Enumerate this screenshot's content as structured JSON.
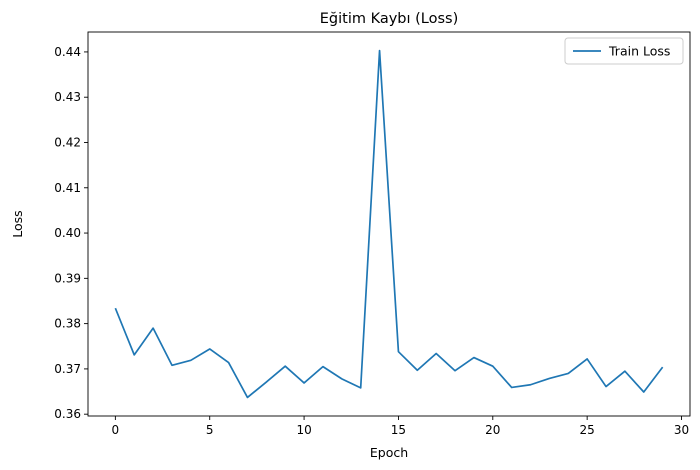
{
  "chart_data": {
    "type": "line",
    "title": "Eğitim Kaybı (Loss)",
    "xlabel": "Epoch",
    "ylabel": "Loss",
    "xlim": [
      -1.45,
      30.45
    ],
    "ylim": [
      0.3596,
      0.4444
    ],
    "xticks": [
      0,
      5,
      10,
      15,
      20,
      25,
      30
    ],
    "yticks": [
      0.36,
      0.37,
      0.38,
      0.39,
      0.4,
      0.41,
      0.42,
      0.43,
      0.44
    ],
    "ytick_labels": [
      "0.36",
      "0.37",
      "0.38",
      "0.39",
      "0.40",
      "0.41",
      "0.42",
      "0.43",
      "0.44"
    ],
    "grid": false,
    "legend_position": "top-right",
    "series": [
      {
        "name": "Train Loss",
        "color": "#1f77b4",
        "x": [
          0,
          1,
          2,
          3,
          4,
          5,
          6,
          7,
          8,
          9,
          10,
          11,
          12,
          13,
          14,
          15,
          16,
          17,
          18,
          19,
          20,
          21,
          22,
          23,
          24,
          25,
          26,
          27,
          28,
          29
        ],
        "y": [
          0.3834,
          0.3731,
          0.379,
          0.3708,
          0.3719,
          0.3744,
          0.3714,
          0.3637,
          0.3671,
          0.3706,
          0.3669,
          0.3705,
          0.3678,
          0.3658,
          0.4403,
          0.3738,
          0.3697,
          0.3734,
          0.3696,
          0.3725,
          0.3706,
          0.3659,
          0.3665,
          0.3679,
          0.369,
          0.3722,
          0.3661,
          0.3695,
          0.3649,
          0.3704
        ]
      }
    ]
  }
}
